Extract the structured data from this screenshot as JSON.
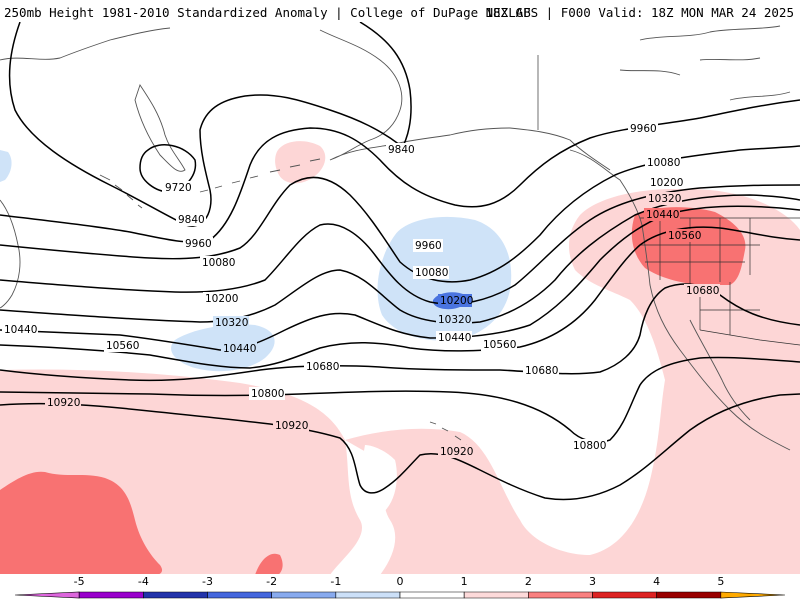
{
  "header": {
    "left_title": "250mb Height 1981-2010 Standardized Anomaly | College of DuPage NEXLAB",
    "right_title": "18Z GFS | F000 Valid: 18Z MON MAR 24 2025"
  },
  "map": {
    "variable": "250mb height",
    "contour_interval": 120,
    "contour_labels": [
      "9720",
      "9840",
      "9840",
      "9960",
      "9960",
      "9960",
      "10080",
      "10080",
      "10080",
      "10200",
      "10200",
      "10200",
      "10320",
      "10320",
      "10320",
      "10440",
      "10440",
      "10440",
      "10440",
      "10560",
      "10560",
      "10560",
      "10680",
      "10680",
      "10680",
      "10800",
      "10800",
      "10920",
      "10920",
      "10920"
    ]
  },
  "colorbar": {
    "tick_labels": [
      "-5",
      "-4",
      "-3",
      "-2",
      "-1",
      "0",
      "1",
      "2",
      "3",
      "4",
      "5"
    ],
    "colors": [
      "#9900cc",
      "#2233aa",
      "#4466dd",
      "#88aaee",
      "#cce0f8",
      "#ffffff",
      "#fddada",
      "#f98080",
      "#dd2222",
      "#990000",
      "#ffaa00"
    ]
  }
}
